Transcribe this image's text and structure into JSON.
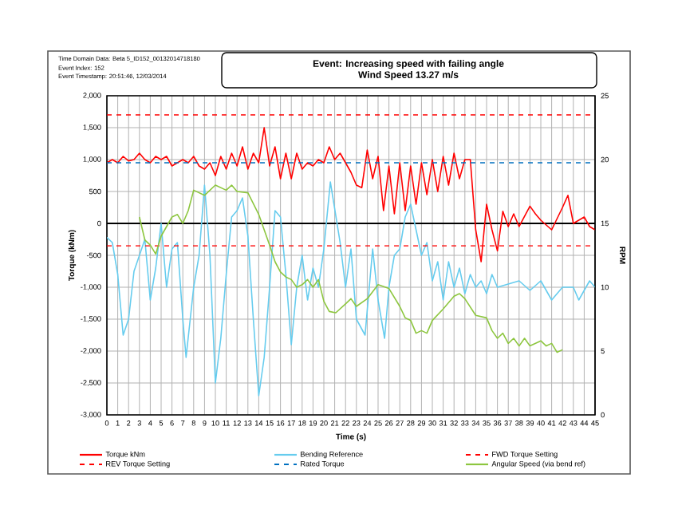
{
  "chart_data": {
    "type": "line",
    "title": "Event: Increasing speed with failing angle",
    "subtitle": "Wind Speed 13.27 m/s",
    "xlabel": "Time (s)",
    "ylabel": "Torque (kNm)",
    "y2label": "RPM",
    "annotations": [
      "Time Domain Data: Beta 5_ID152_00132014718180",
      "Event Index: 152",
      "Event Timestamp: 20:51:46, 12/03/2014"
    ],
    "xlim": [
      0,
      45
    ],
    "xticks": [
      0,
      1,
      2,
      3,
      4,
      5,
      6,
      7,
      8,
      9,
      10,
      11,
      12,
      13,
      14,
      15,
      16,
      17,
      18,
      19,
      20,
      21,
      22,
      23,
      24,
      25,
      26,
      27,
      28,
      29,
      30,
      31,
      32,
      33,
      34,
      35,
      36,
      37,
      38,
      39,
      40,
      41,
      42,
      43,
      44,
      45
    ],
    "ylim": [
      -3000,
      2000
    ],
    "yticks": [
      {
        "value": -3000,
        "label": "-3,000"
      },
      {
        "value": -2500,
        "label": "-2,500"
      },
      {
        "value": -2000,
        "label": "-2,000"
      },
      {
        "value": -1500,
        "label": "-1,500"
      },
      {
        "value": -1000,
        "label": "-1,000"
      },
      {
        "value": -500,
        "label": "-500"
      },
      0,
      500,
      {
        "value": 1000,
        "label": "1,000"
      },
      {
        "value": 1500,
        "label": "1,500"
      },
      {
        "value": 2000,
        "label": "2,000"
      }
    ],
    "y2lim": [
      0,
      25
    ],
    "y2ticks": [
      0,
      5,
      10,
      15,
      20,
      25
    ],
    "grid": true,
    "legend": "bottom",
    "ref_lines": [
      {
        "axis": "y",
        "value": 0,
        "color": "#000000"
      }
    ],
    "series": [
      {
        "name": "Torque kNm",
        "color": "#ff0000",
        "x": [
          0,
          0.5,
          1,
          1.5,
          2,
          2.5,
          3,
          3.5,
          4,
          4.5,
          5,
          5.5,
          6,
          6.5,
          7,
          7.5,
          8,
          8.5,
          9,
          9.5,
          10,
          10.5,
          11,
          11.5,
          12,
          12.5,
          13,
          13.5,
          14,
          14.5,
          15,
          15.5,
          16,
          16.5,
          17,
          17.5,
          18,
          18.5,
          19,
          19.5,
          20,
          20.5,
          21,
          21.5,
          22,
          22.5,
          23,
          23.5,
          24,
          24.5,
          25,
          25.5,
          26,
          26.5,
          27,
          27.5,
          28,
          28.5,
          29,
          29.5,
          30,
          30.5,
          31,
          31.5,
          32,
          32.5,
          33,
          33.5,
          34,
          34.5,
          35,
          35.5,
          36,
          36.5,
          37,
          37.5,
          38,
          39,
          39.5,
          40,
          41,
          42,
          42.5,
          43,
          44,
          44.5,
          45
        ],
        "values": [
          950,
          1000,
          950,
          1050,
          980,
          1000,
          1100,
          1000,
          950,
          1050,
          1000,
          1050,
          900,
          950,
          1000,
          950,
          1050,
          900,
          850,
          950,
          750,
          1050,
          850,
          1100,
          900,
          1200,
          850,
          1100,
          950,
          1500,
          900,
          1200,
          700,
          1100,
          700,
          1100,
          850,
          950,
          900,
          1000,
          950,
          1200,
          1000,
          1100,
          950,
          800,
          600,
          560,
          1150,
          700,
          1050,
          200,
          900,
          150,
          950,
          200,
          900,
          300,
          950,
          450,
          1000,
          500,
          1050,
          600,
          1100,
          700,
          1000,
          1000,
          -100,
          -600,
          300,
          -100,
          -430,
          190,
          -50,
          150,
          -50,
          270,
          150,
          50,
          -100,
          250,
          440,
          0,
          100,
          -50,
          -100
        ]
      },
      {
        "name": "Bending Reference",
        "color": "#66ccee",
        "x": [
          0,
          0.5,
          1,
          1.5,
          2,
          2.5,
          3,
          3.5,
          4,
          4.5,
          5,
          5.5,
          6,
          6.5,
          7,
          7.3,
          8,
          8.5,
          9,
          9.5,
          10,
          10.5,
          11,
          11.5,
          12,
          12.5,
          13,
          13.5,
          14,
          14.5,
          15,
          15.5,
          16,
          16.5,
          17,
          17.5,
          18,
          18.5,
          19,
          19.5,
          20,
          20.6,
          21.5,
          22,
          22.5,
          23,
          23.8,
          24.5,
          25,
          25.6,
          26,
          26.5,
          27,
          27.5,
          28,
          28.5,
          29,
          29.5,
          30,
          30.5,
          31,
          31.5,
          32,
          32.5,
          33,
          33.5,
          34,
          34.5,
          35,
          35.5,
          36,
          38,
          39,
          40,
          41,
          42,
          43,
          43.5,
          44.5,
          45
        ],
        "values": [
          -220,
          -300,
          -800,
          -1750,
          -1500,
          -750,
          -500,
          -250,
          -1200,
          -700,
          0,
          -1000,
          -400,
          -300,
          -1500,
          -2100,
          -1000,
          -500,
          600,
          -500,
          -2500,
          -1800,
          -800,
          100,
          200,
          400,
          -200,
          -1500,
          -2700,
          -2100,
          -1000,
          200,
          100,
          -800,
          -1900,
          -1000,
          -500,
          -1200,
          -700,
          -1000,
          -400,
          650,
          -300,
          -1000,
          -400,
          -1500,
          -1750,
          -400,
          -1200,
          -1800,
          -1000,
          -500,
          -400,
          100,
          300,
          -100,
          -500,
          -300,
          -900,
          -600,
          -1200,
          -600,
          -1000,
          -700,
          -1100,
          -800,
          -1000,
          -900,
          -1100,
          -800,
          -1000,
          -900,
          -1050,
          -900,
          -1200,
          -1000,
          -1000,
          -1200,
          -900,
          -1000
        ]
      },
      {
        "name": "FWD Torque Setting",
        "color": "#ff0000",
        "line_style": "dashed",
        "x": [
          0,
          45
        ],
        "values": [
          1700,
          1700
        ]
      },
      {
        "name": "REV Torque Setting",
        "color": "#ff0000",
        "line_style": "dashed",
        "x": [
          0,
          45
        ],
        "values": [
          -350,
          -350
        ]
      },
      {
        "name": "Rated Torque",
        "color": "#0070c0",
        "line_style": "dashed",
        "x": [
          0,
          45
        ],
        "values": [
          950,
          950
        ]
      },
      {
        "name": "Angular Speed (via bend ref)",
        "color": "#8dc63f",
        "axis": "y2",
        "x": [
          3,
          3.5,
          4,
          4.5,
          5,
          6,
          6.5,
          7,
          7.5,
          8,
          8.5,
          9,
          10,
          11,
          11.5,
          12,
          13,
          14,
          15,
          15.5,
          16,
          16.5,
          17,
          17.5,
          18,
          18.5,
          19,
          19.5,
          20,
          20.5,
          21.1,
          22,
          22.5,
          23,
          24,
          25,
          26,
          27,
          27.5,
          28,
          28.5,
          29,
          29.5,
          30,
          31,
          32,
          32.5,
          33,
          34,
          35,
          35.5,
          36,
          36.5,
          37,
          37.5,
          38,
          38.5,
          39,
          40,
          40.5,
          41,
          41.5,
          42
        ],
        "values": [
          15.5,
          13.7,
          13.3,
          12.6,
          14,
          15.5,
          15.7,
          15,
          16,
          17.6,
          17.4,
          17.2,
          18,
          17.6,
          18,
          17.5,
          17.4,
          15.7,
          13.3,
          12,
          11.2,
          10.8,
          10.6,
          10,
          10.2,
          10.6,
          10,
          10.6,
          8.9,
          8.1,
          8,
          8.7,
          9.1,
          8.5,
          9.1,
          10.2,
          9.9,
          8.5,
          7.6,
          7.4,
          6.4,
          6.6,
          6.4,
          7.4,
          8.3,
          9.3,
          9.5,
          9.1,
          7.8,
          7.6,
          6.6,
          6,
          6.4,
          5.6,
          6,
          5.4,
          6,
          5.4,
          5.8,
          5.4,
          5.6,
          4.9,
          5.1
        ]
      }
    ]
  }
}
